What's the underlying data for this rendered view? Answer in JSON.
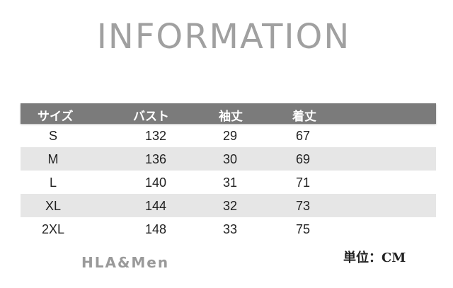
{
  "title": "INFORMATION",
  "table": {
    "headers": [
      "サイズ",
      "バスト",
      "袖丈",
      "着丈"
    ],
    "rows": [
      [
        "S",
        "132",
        "29",
        "67"
      ],
      [
        "M",
        "136",
        "30",
        "69"
      ],
      [
        "L",
        "140",
        "31",
        "71"
      ],
      [
        "XL",
        "144",
        "32",
        "73"
      ],
      [
        "2XL",
        "148",
        "33",
        "75"
      ]
    ]
  },
  "brand": "HLA&Men",
  "unit": "単位：CM",
  "colors": {
    "header_bg": "#7b7b7b",
    "alt_row_bg": "#e6e6e6",
    "title": "#a0a0a0"
  }
}
